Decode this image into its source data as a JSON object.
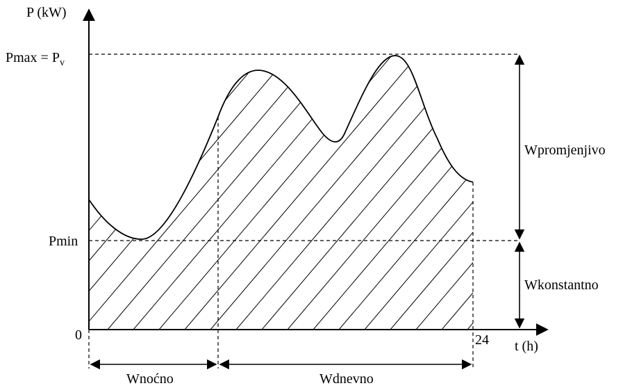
{
  "axes": {
    "y_label": "P (kW)",
    "x_label": "t (h)",
    "origin": "0",
    "x_end": "24"
  },
  "levels": {
    "pmax_label": "Pmax = P",
    "pmax_sub": "v",
    "pmin_label": "Pmin"
  },
  "regions": {
    "variable": "Wpromjenjivo",
    "constant": "Wkonstantno",
    "night": "Wnoćno",
    "day": "Wdnevno"
  }
}
